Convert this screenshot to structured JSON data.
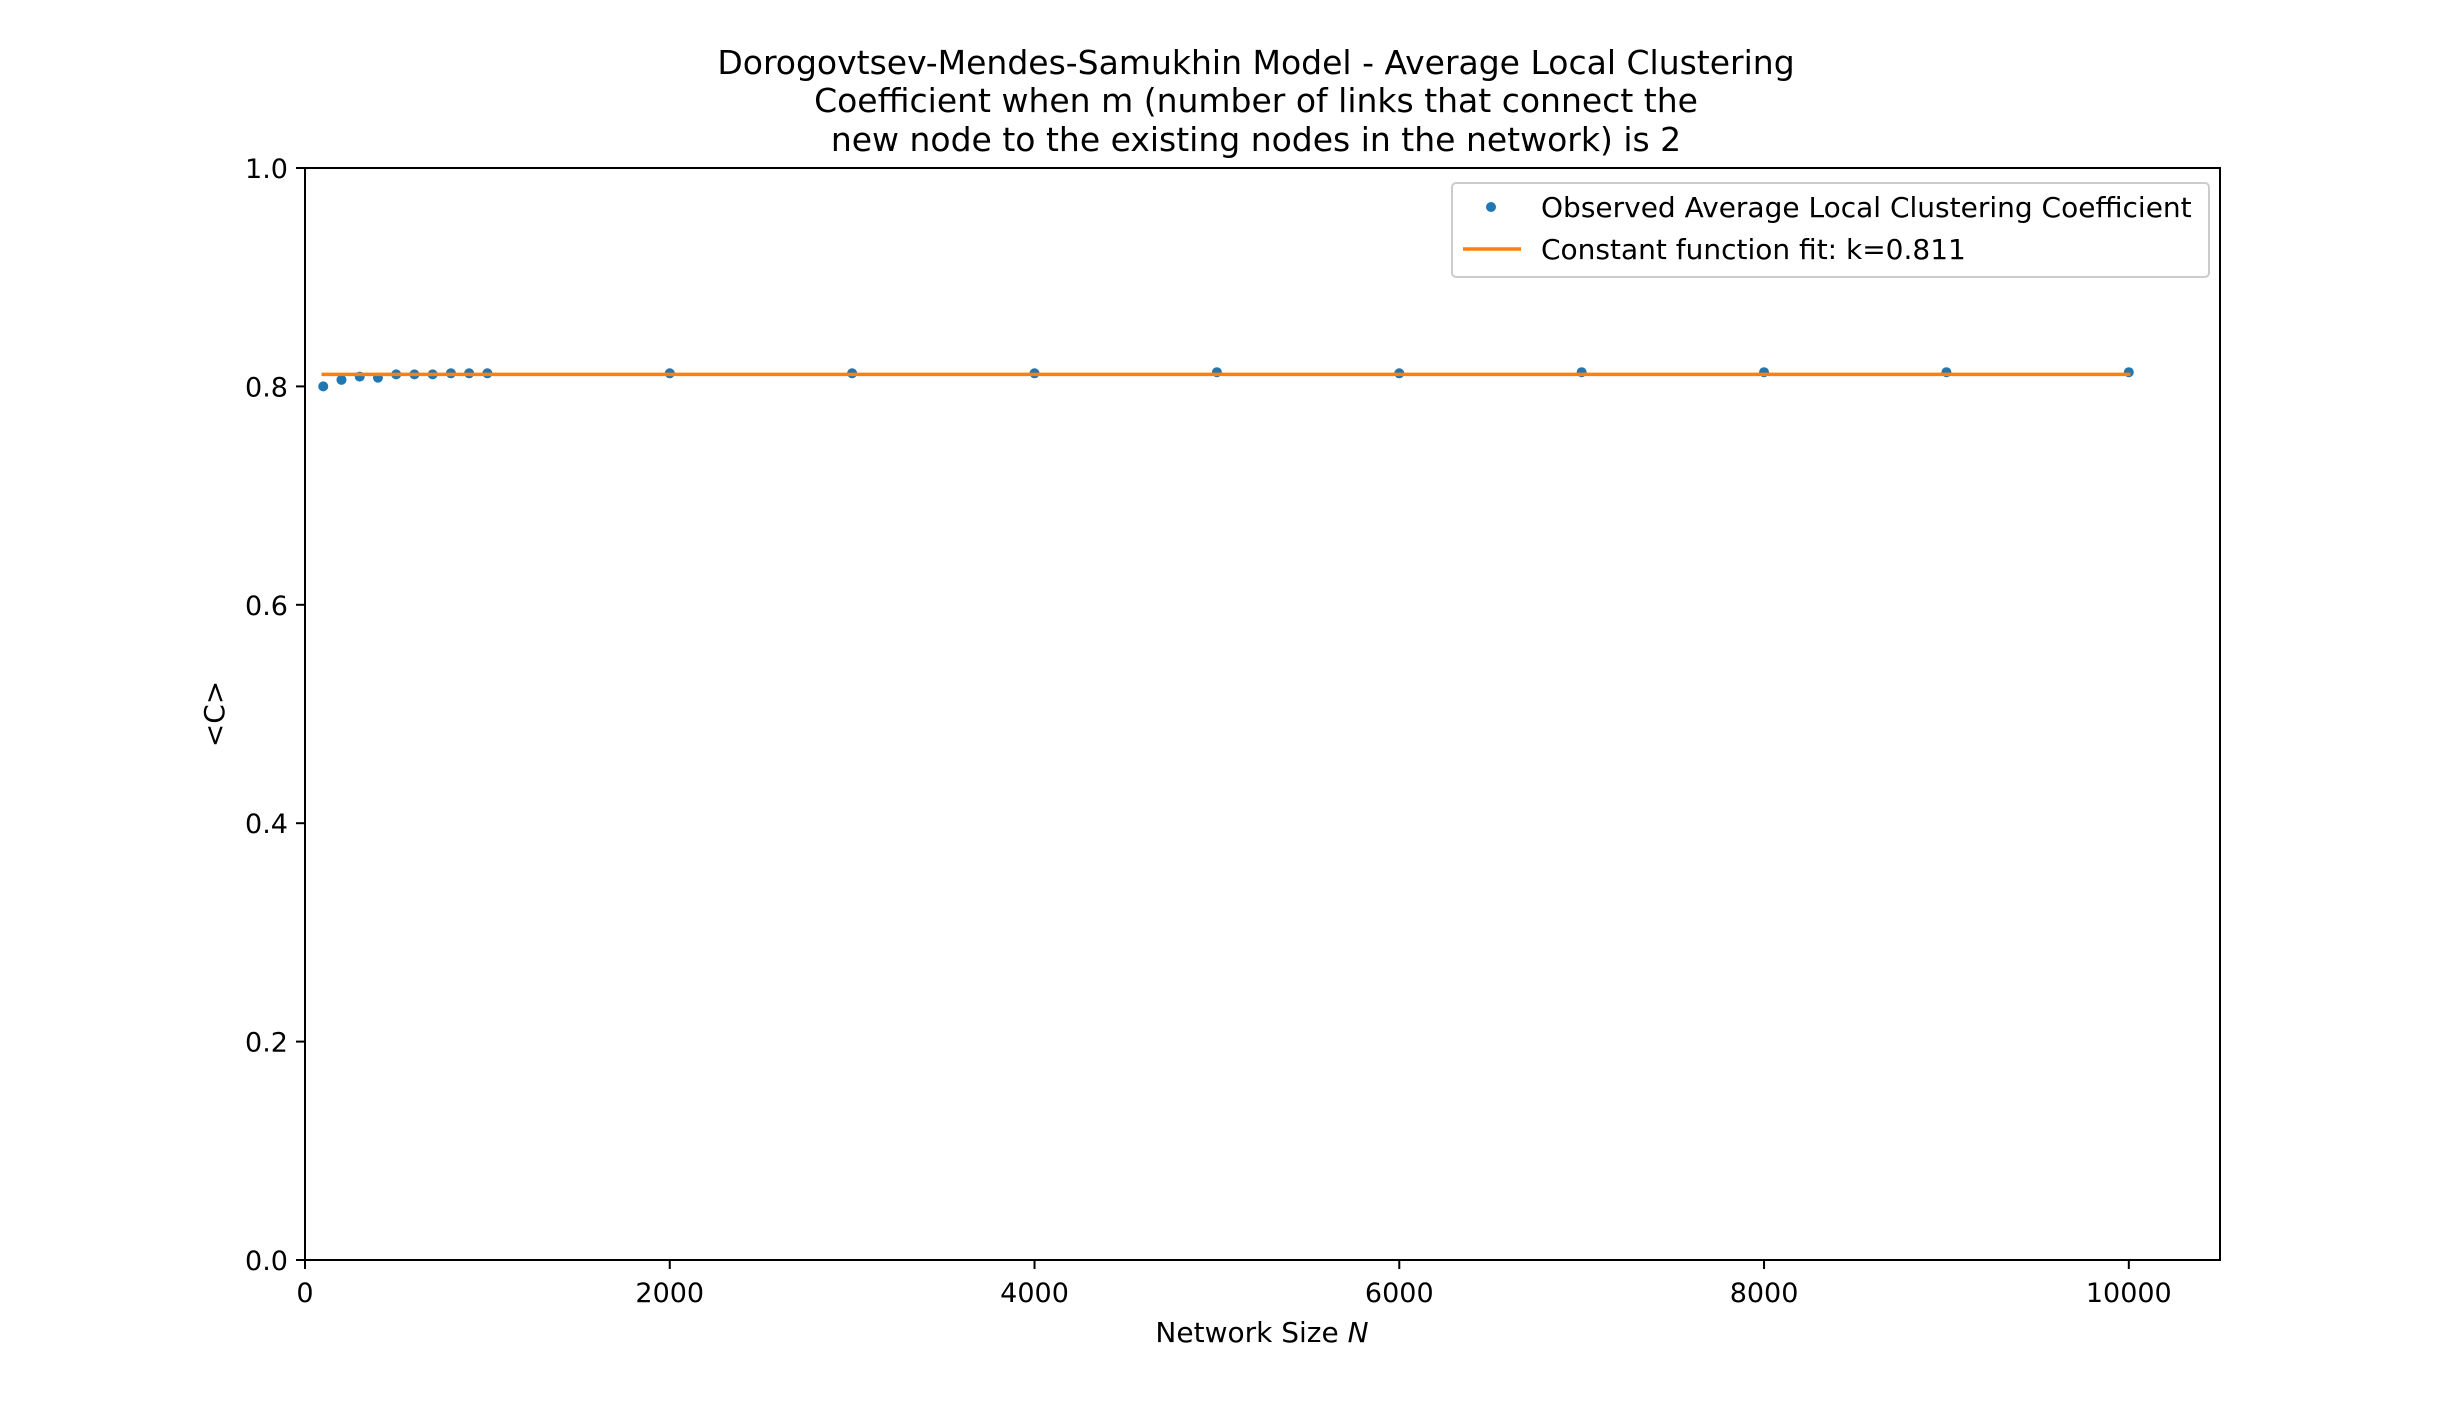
{
  "chart_data": {
    "type": "scatter",
    "title_lines": [
      "Dorogovtsev-Mendes-Samukhin Model - Average Local Clustering",
      "Coefficient when m (number of links that connect the",
      "new node to the existing nodes in the network) is 2"
    ],
    "xlabel_text": "Network Size ",
    "xlabel_var": "N",
    "ylabel": "<C>",
    "xlim": [
      0,
      10500
    ],
    "ylim": [
      0.0,
      1.0
    ],
    "xticks": [
      0,
      2000,
      4000,
      6000,
      8000,
      10000
    ],
    "xtick_labels": [
      "0",
      "2000",
      "4000",
      "6000",
      "8000",
      "10000"
    ],
    "yticks": [
      0.0,
      0.2,
      0.4,
      0.6,
      0.8,
      1.0
    ],
    "ytick_labels": [
      "0.0",
      "0.2",
      "0.4",
      "0.6",
      "0.8",
      "1.0"
    ],
    "grid": false,
    "legend_position": "top-right",
    "series": [
      {
        "name": "Observed Average Local Clustering Coefficient",
        "kind": "points",
        "color": "#1f77b4",
        "x": [
          100,
          200,
          300,
          400,
          500,
          600,
          700,
          800,
          900,
          1000,
          2000,
          3000,
          4000,
          5000,
          6000,
          7000,
          8000,
          9000,
          10000
        ],
        "y": [
          0.8,
          0.806,
          0.809,
          0.808,
          0.811,
          0.811,
          0.811,
          0.812,
          0.812,
          0.812,
          0.812,
          0.812,
          0.812,
          0.813,
          0.812,
          0.813,
          0.813,
          0.813,
          0.813
        ]
      },
      {
        "name": "Constant function fit: k=0.811",
        "kind": "line",
        "color": "#ff7f0e",
        "x": [
          100,
          10000
        ],
        "y": [
          0.811,
          0.811
        ]
      }
    ]
  }
}
